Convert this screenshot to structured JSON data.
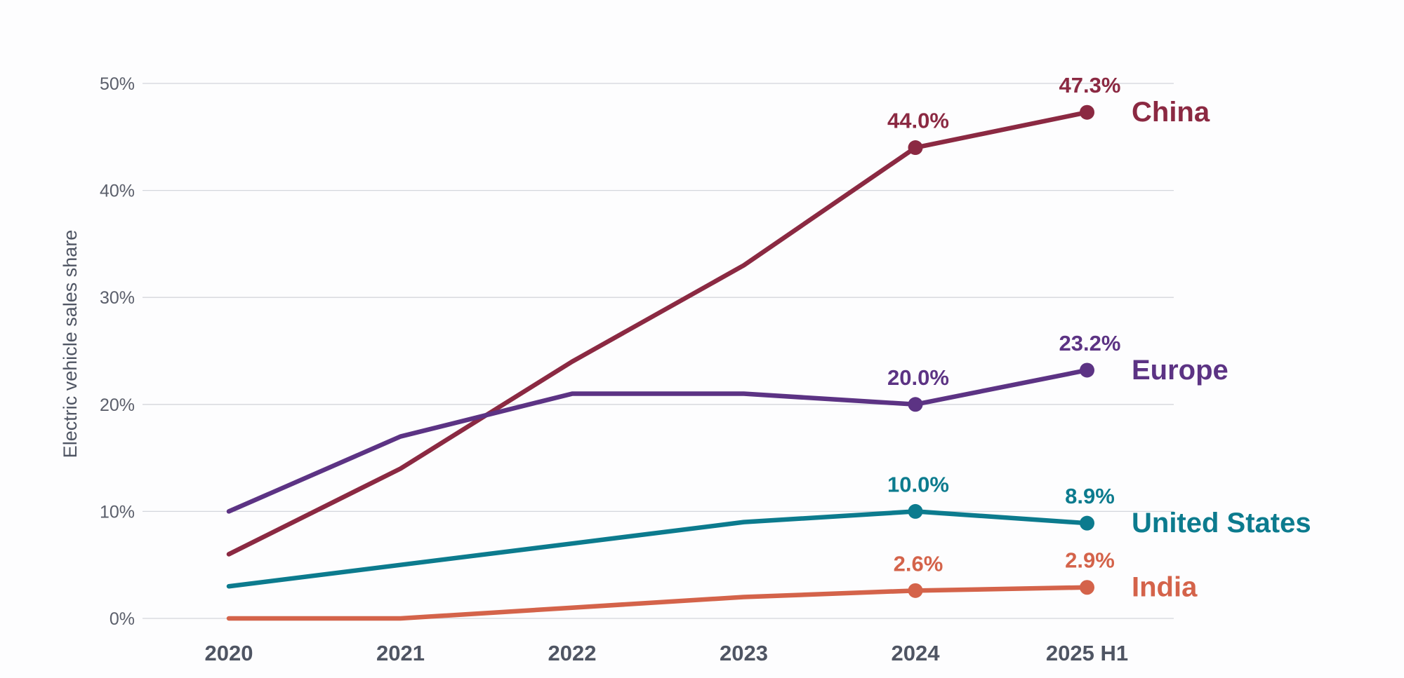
{
  "chart_data": {
    "type": "line",
    "ylabel": "Electric vehicle sales share",
    "x": [
      "2020",
      "2021",
      "2022",
      "2023",
      "2024",
      "2025 H1"
    ],
    "ylim": [
      0,
      50
    ],
    "yticks": [
      0,
      10,
      20,
      30,
      40,
      50
    ],
    "ytick_labels": [
      "0%",
      "10%",
      "20%",
      "30%",
      "40%",
      "50%"
    ],
    "grid": true,
    "legend": "direct labels at line ends",
    "series": [
      {
        "name": "China",
        "color": "#8b2942",
        "values": [
          6,
          14,
          24,
          33,
          44.0,
          47.3
        ],
        "point_labels": [
          null,
          null,
          null,
          null,
          "44.0%",
          "47.3%"
        ]
      },
      {
        "name": "Europe",
        "color": "#5c3384",
        "values": [
          10,
          17,
          21,
          21,
          20.0,
          23.2
        ],
        "point_labels": [
          null,
          null,
          null,
          null,
          "20.0%",
          "23.2%"
        ]
      },
      {
        "name": "United States",
        "color": "#0c7b8e",
        "values": [
          3,
          5,
          7,
          9,
          10.0,
          8.9
        ],
        "point_labels": [
          null,
          null,
          null,
          null,
          "10.0%",
          "8.9%"
        ]
      },
      {
        "name": "India",
        "color": "#d4634a",
        "values": [
          0,
          0,
          1,
          2,
          2.6,
          2.9
        ],
        "point_labels": [
          null,
          null,
          null,
          null,
          "2.6%",
          "2.9%"
        ]
      }
    ]
  }
}
